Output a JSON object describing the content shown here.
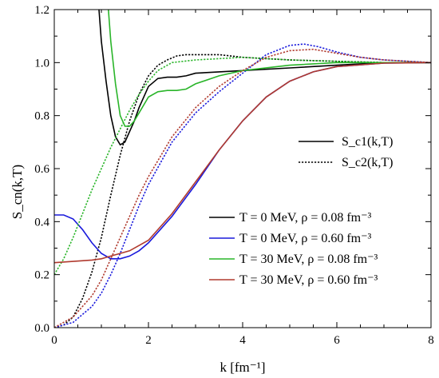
{
  "chart_data": {
    "type": "line",
    "xlabel": "k [fm⁻¹]",
    "ylabel": "S_cn(k,T)",
    "xlim": [
      0,
      8
    ],
    "ylim": [
      0,
      1.2
    ],
    "xticks": [
      "0",
      "2",
      "4",
      "6",
      "8"
    ],
    "yticks": [
      "0.0",
      "0.2",
      "0.4",
      "0.6",
      "0.8",
      "1.0",
      "1.2"
    ],
    "grid": false,
    "style_legend": [
      {
        "label": "S_c1(k,T)",
        "dash": "solid"
      },
      {
        "label": "S_c2(k,T)",
        "dash": "dotted"
      }
    ],
    "case_legend": [
      {
        "label": "T =   0 MeV,  ρ = 0.08 fm⁻³",
        "color": "#000000"
      },
      {
        "label": "T =   0 MeV,  ρ = 0.60 fm⁻³",
        "color": "#1a1adc"
      },
      {
        "label": "T = 30 MeV,  ρ = 0.08 fm⁻³",
        "color": "#2ab52a"
      },
      {
        "label": "T = 30 MeV,  ρ = 0.60 fm⁻³",
        "color": "#b03a2e"
      }
    ],
    "series": [
      {
        "color": "#000000",
        "dash": "solid",
        "points": [
          [
            0.95,
            1.2
          ],
          [
            1.0,
            1.08
          ],
          [
            1.1,
            0.93
          ],
          [
            1.2,
            0.8
          ],
          [
            1.3,
            0.72
          ],
          [
            1.4,
            0.69
          ],
          [
            1.5,
            0.7
          ],
          [
            1.6,
            0.74
          ],
          [
            1.7,
            0.78
          ],
          [
            1.8,
            0.83
          ],
          [
            2.0,
            0.91
          ],
          [
            2.2,
            0.94
          ],
          [
            2.4,
            0.945
          ],
          [
            2.6,
            0.945
          ],
          [
            2.8,
            0.95
          ],
          [
            3.0,
            0.96
          ],
          [
            3.5,
            0.965
          ],
          [
            4.0,
            0.97
          ],
          [
            5.0,
            0.98
          ],
          [
            6.0,
            0.99
          ],
          [
            7.0,
            1.0
          ],
          [
            8.0,
            1.0
          ]
        ]
      },
      {
        "color": "#000000",
        "dash": "dotted",
        "points": [
          [
            0.0,
            0.0
          ],
          [
            0.2,
            0.01
          ],
          [
            0.4,
            0.04
          ],
          [
            0.6,
            0.11
          ],
          [
            0.8,
            0.21
          ],
          [
            1.0,
            0.34
          ],
          [
            1.2,
            0.5
          ],
          [
            1.4,
            0.65
          ],
          [
            1.6,
            0.78
          ],
          [
            1.8,
            0.88
          ],
          [
            2.0,
            0.95
          ],
          [
            2.2,
            0.99
          ],
          [
            2.4,
            1.01
          ],
          [
            2.6,
            1.025
          ],
          [
            2.8,
            1.03
          ],
          [
            3.0,
            1.03
          ],
          [
            3.5,
            1.03
          ],
          [
            4.0,
            1.02
          ],
          [
            4.5,
            1.015
          ],
          [
            5.0,
            1.01
          ],
          [
            6.0,
            1.005
          ],
          [
            7.0,
            1.0
          ],
          [
            8.0,
            1.0
          ]
        ]
      },
      {
        "color": "#1a1adc",
        "dash": "solid",
        "points": [
          [
            0.0,
            0.425
          ],
          [
            0.2,
            0.425
          ],
          [
            0.4,
            0.41
          ],
          [
            0.6,
            0.37
          ],
          [
            0.8,
            0.32
          ],
          [
            1.0,
            0.28
          ],
          [
            1.2,
            0.26
          ],
          [
            1.4,
            0.26
          ],
          [
            1.6,
            0.27
          ],
          [
            1.8,
            0.29
          ],
          [
            2.0,
            0.32
          ],
          [
            2.5,
            0.42
          ],
          [
            3.0,
            0.54
          ],
          [
            3.5,
            0.67
          ],
          [
            4.0,
            0.78
          ],
          [
            4.5,
            0.87
          ],
          [
            5.0,
            0.93
          ],
          [
            5.5,
            0.965
          ],
          [
            6.0,
            0.985
          ],
          [
            7.0,
            0.998
          ],
          [
            8.0,
            1.0
          ]
        ]
      },
      {
        "color": "#1a1adc",
        "dash": "dotted",
        "points": [
          [
            0.0,
            0.0
          ],
          [
            0.4,
            0.02
          ],
          [
            0.8,
            0.08
          ],
          [
            1.0,
            0.13
          ],
          [
            1.2,
            0.2
          ],
          [
            1.4,
            0.28
          ],
          [
            1.6,
            0.37
          ],
          [
            1.8,
            0.46
          ],
          [
            2.0,
            0.54
          ],
          [
            2.5,
            0.7
          ],
          [
            3.0,
            0.81
          ],
          [
            3.5,
            0.89
          ],
          [
            4.0,
            0.96
          ],
          [
            4.5,
            1.03
          ],
          [
            5.0,
            1.065
          ],
          [
            5.3,
            1.07
          ],
          [
            5.6,
            1.06
          ],
          [
            6.0,
            1.04
          ],
          [
            6.5,
            1.02
          ],
          [
            7.0,
            1.01
          ],
          [
            8.0,
            1.0
          ]
        ]
      },
      {
        "color": "#2ab52a",
        "dash": "solid",
        "points": [
          [
            1.15,
            1.2
          ],
          [
            1.2,
            1.08
          ],
          [
            1.3,
            0.92
          ],
          [
            1.4,
            0.8
          ],
          [
            1.5,
            0.76
          ],
          [
            1.6,
            0.76
          ],
          [
            1.7,
            0.78
          ],
          [
            1.8,
            0.81
          ],
          [
            2.0,
            0.87
          ],
          [
            2.2,
            0.89
          ],
          [
            2.4,
            0.895
          ],
          [
            2.6,
            0.895
          ],
          [
            2.8,
            0.9
          ],
          [
            3.0,
            0.92
          ],
          [
            3.5,
            0.95
          ],
          [
            4.0,
            0.97
          ],
          [
            5.0,
            0.99
          ],
          [
            6.0,
            1.0
          ],
          [
            7.0,
            1.0
          ],
          [
            8.0,
            1.0
          ]
        ]
      },
      {
        "color": "#2ab52a",
        "dash": "dotted",
        "points": [
          [
            0.0,
            0.2
          ],
          [
            0.2,
            0.26
          ],
          [
            0.4,
            0.34
          ],
          [
            0.6,
            0.43
          ],
          [
            0.8,
            0.52
          ],
          [
            1.0,
            0.6
          ],
          [
            1.2,
            0.68
          ],
          [
            1.4,
            0.75
          ],
          [
            1.6,
            0.82
          ],
          [
            1.8,
            0.88
          ],
          [
            2.0,
            0.93
          ],
          [
            2.2,
            0.97
          ],
          [
            2.5,
            1.0
          ],
          [
            3.0,
            1.01
          ],
          [
            3.5,
            1.015
          ],
          [
            4.0,
            1.02
          ],
          [
            5.0,
            1.01
          ],
          [
            6.0,
            1.005
          ],
          [
            7.0,
            1.0
          ],
          [
            8.0,
            1.0
          ]
        ]
      },
      {
        "color": "#b03a2e",
        "dash": "solid",
        "points": [
          [
            0.0,
            0.245
          ],
          [
            0.4,
            0.25
          ],
          [
            0.8,
            0.255
          ],
          [
            1.0,
            0.26
          ],
          [
            1.2,
            0.27
          ],
          [
            1.4,
            0.28
          ],
          [
            1.6,
            0.29
          ],
          [
            1.8,
            0.31
          ],
          [
            2.0,
            0.33
          ],
          [
            2.5,
            0.43
          ],
          [
            3.0,
            0.55
          ],
          [
            3.5,
            0.67
          ],
          [
            4.0,
            0.78
          ],
          [
            4.5,
            0.87
          ],
          [
            5.0,
            0.93
          ],
          [
            5.5,
            0.965
          ],
          [
            6.0,
            0.985
          ],
          [
            7.0,
            0.998
          ],
          [
            8.0,
            1.0
          ]
        ]
      },
      {
        "color": "#b03a2e",
        "dash": "dotted",
        "points": [
          [
            0.0,
            0.0
          ],
          [
            0.4,
            0.04
          ],
          [
            0.8,
            0.12
          ],
          [
            1.0,
            0.18
          ],
          [
            1.2,
            0.26
          ],
          [
            1.4,
            0.34
          ],
          [
            1.6,
            0.42
          ],
          [
            1.8,
            0.5
          ],
          [
            2.0,
            0.57
          ],
          [
            2.5,
            0.72
          ],
          [
            3.0,
            0.83
          ],
          [
            3.5,
            0.91
          ],
          [
            4.0,
            0.97
          ],
          [
            4.5,
            1.02
          ],
          [
            5.0,
            1.045
          ],
          [
            5.5,
            1.05
          ],
          [
            6.0,
            1.035
          ],
          [
            6.5,
            1.02
          ],
          [
            7.0,
            1.01
          ],
          [
            8.0,
            1.0
          ]
        ]
      }
    ]
  }
}
